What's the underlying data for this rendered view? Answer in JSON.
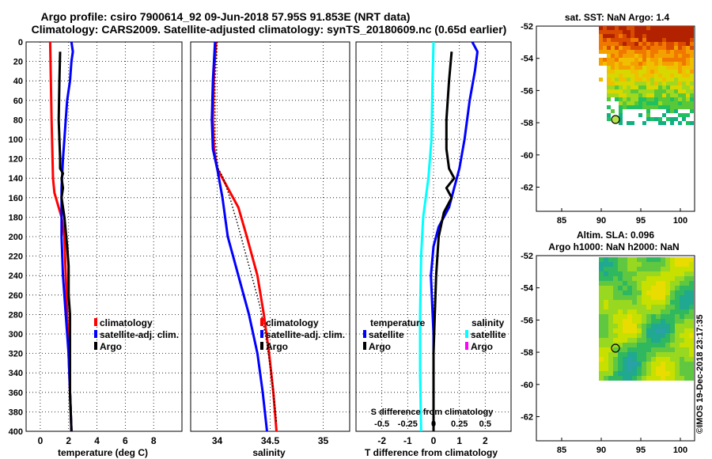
{
  "header": {
    "line1": "Argo profile: csiro 7900614_92 09-Jun-2018 57.95S 91.853E (NRT data)",
    "line2": "Climatology: CARS2009. Satellite-adjusted climatology: synTS_20180609.nc (0.65d earlier)"
  },
  "chart_data": [
    {
      "type": "line",
      "title": "",
      "xlabel": "temperature (deg C)",
      "xlim": [
        -1,
        10
      ],
      "ylim": [
        400,
        0
      ],
      "xticks": [
        0,
        2,
        4,
        6,
        8
      ],
      "xtick_labels": [
        "0",
        "2",
        "4",
        "6",
        "8"
      ],
      "yticks": [
        0,
        20,
        40,
        60,
        80,
        100,
        120,
        140,
        160,
        180,
        200,
        220,
        240,
        260,
        280,
        300,
        320,
        340,
        360,
        380,
        400
      ],
      "ytick_labels": [
        "0",
        "20",
        "40",
        "60",
        "80",
        "100",
        "120",
        "140",
        "160",
        "180",
        "200",
        "220",
        "240",
        "260",
        "280",
        "300",
        "320",
        "340",
        "360",
        "380",
        "400"
      ],
      "grid": true,
      "legend": [
        "climatology",
        "satellite-adj. clim.",
        "Argo"
      ],
      "series": [
        {
          "name": "climatology",
          "color": "#ff0000",
          "points": [
            [
              0.7,
              0
            ],
            [
              0.75,
              40
            ],
            [
              0.8,
              80
            ],
            [
              0.85,
              110
            ],
            [
              0.9,
              140
            ],
            [
              1.0,
              155
            ],
            [
              1.2,
              165
            ],
            [
              1.5,
              180
            ],
            [
              1.7,
              200
            ],
            [
              1.8,
              240
            ],
            [
              1.9,
              280
            ],
            [
              2.0,
              320
            ],
            [
              2.1,
              360
            ],
            [
              2.2,
              400
            ]
          ]
        },
        {
          "name": "satellite-adj. clim.",
          "color": "#0000ff",
          "points": [
            [
              2.2,
              0
            ],
            [
              2.3,
              10
            ],
            [
              2.2,
              20
            ],
            [
              2.1,
              40
            ],
            [
              1.9,
              60
            ],
            [
              1.8,
              80
            ],
            [
              1.7,
              100
            ],
            [
              1.6,
              120
            ],
            [
              1.5,
              150
            ],
            [
              1.5,
              200
            ],
            [
              1.6,
              240
            ],
            [
              1.8,
              280
            ],
            [
              2.0,
              320
            ],
            [
              2.1,
              360
            ],
            [
              2.2,
              400
            ]
          ]
        },
        {
          "name": "Argo",
          "color": "#000000",
          "points": [
            [
              1.4,
              10
            ],
            [
              1.35,
              40
            ],
            [
              1.3,
              80
            ],
            [
              1.4,
              120
            ],
            [
              1.4,
              130
            ],
            [
              1.6,
              135
            ],
            [
              1.5,
              140
            ],
            [
              1.6,
              150
            ],
            [
              1.5,
              160
            ],
            [
              1.7,
              180
            ],
            [
              1.9,
              210
            ],
            [
              2.0,
              230
            ],
            [
              2.0,
              260
            ],
            [
              2.1,
              280
            ],
            [
              2.1,
              320
            ],
            [
              2.1,
              360
            ],
            [
              2.2,
              400
            ]
          ]
        }
      ]
    },
    {
      "type": "line",
      "xlabel": "salinity",
      "xlim": [
        33.75,
        35.25
      ],
      "ylim": [
        400,
        0
      ],
      "xticks": [
        34,
        34.5,
        35
      ],
      "xtick_labels": [
        "34",
        "34.5",
        "35"
      ],
      "grid": true,
      "legend": [
        "climatology",
        "satellite-adj. clim.",
        "Argo"
      ],
      "series": [
        {
          "name": "climatology",
          "color": "#ff0000",
          "points": [
            [
              33.99,
              0
            ],
            [
              33.97,
              30
            ],
            [
              33.96,
              80
            ],
            [
              33.97,
              110
            ],
            [
              34.0,
              130
            ],
            [
              34.1,
              150
            ],
            [
              34.2,
              170
            ],
            [
              34.28,
              200
            ],
            [
              34.38,
              240
            ],
            [
              34.44,
              280
            ],
            [
              34.49,
              320
            ],
            [
              34.53,
              360
            ],
            [
              34.56,
              400
            ]
          ]
        },
        {
          "name": "satellite-adj. clim.",
          "color": "#0000ff",
          "points": [
            [
              33.98,
              0
            ],
            [
              33.96,
              40
            ],
            [
              33.95,
              80
            ],
            [
              33.96,
              110
            ],
            [
              34.0,
              130
            ],
            [
              34.05,
              160
            ],
            [
              34.1,
              200
            ],
            [
              34.2,
              240
            ],
            [
              34.3,
              280
            ],
            [
              34.38,
              320
            ],
            [
              34.43,
              360
            ],
            [
              34.47,
              400
            ]
          ]
        },
        {
          "name": "Argo",
          "color": "#000000",
          "dotted": true,
          "points": [
            [
              34.0,
              0
            ],
            [
              33.98,
              40
            ],
            [
              33.98,
              100
            ],
            [
              34.01,
              130
            ],
            [
              34.06,
              140
            ],
            [
              34.12,
              160
            ],
            [
              34.2,
              190
            ],
            [
              34.3,
              230
            ],
            [
              34.4,
              270
            ],
            [
              34.47,
              310
            ],
            [
              34.52,
              350
            ],
            [
              34.56,
              390
            ]
          ]
        }
      ]
    },
    {
      "type": "line",
      "xlabel": "T difference from climatology",
      "x2label": "S difference from climatology",
      "xlim": [
        -3,
        3
      ],
      "x2lim": [
        -0.75,
        0.75
      ],
      "ylim": [
        400,
        0
      ],
      "xticks": [
        -2,
        -1,
        0,
        1,
        2
      ],
      "xtick_labels": [
        "-2",
        "-1",
        "0",
        "1",
        "2"
      ],
      "x2ticks": [
        -0.5,
        -0.25,
        0,
        0.25,
        0.5
      ],
      "x2tick_labels": [
        "-0.5",
        "-0.25",
        "0",
        "0.25",
        "0.5"
      ],
      "grid": true,
      "legend_temperature_title": "temperature",
      "legend_salinity_title": "salinity",
      "legend_temperature": [
        "satellite",
        "Argo"
      ],
      "legend_salinity": [
        "satellite",
        "Argo"
      ],
      "series": [
        {
          "name": "T satellite",
          "color": "#0000ff",
          "points": [
            [
              1.5,
              0
            ],
            [
              1.7,
              10
            ],
            [
              1.6,
              30
            ],
            [
              1.4,
              60
            ],
            [
              1.2,
              100
            ],
            [
              1.0,
              130
            ],
            [
              0.8,
              150
            ],
            [
              0.6,
              170
            ],
            [
              0.2,
              190
            ],
            [
              0.0,
              210
            ],
            [
              -0.1,
              240
            ],
            [
              0.0,
              300
            ],
            [
              0.0,
              360
            ],
            [
              0.0,
              400
            ]
          ]
        },
        {
          "name": "T Argo",
          "color": "#000000",
          "points": [
            [
              0.7,
              10
            ],
            [
              0.6,
              40
            ],
            [
              0.5,
              80
            ],
            [
              0.5,
              110
            ],
            [
              0.6,
              130
            ],
            [
              0.8,
              140
            ],
            [
              0.5,
              150
            ],
            [
              0.7,
              160
            ],
            [
              0.4,
              175
            ],
            [
              0.2,
              200
            ],
            [
              0.1,
              240
            ],
            [
              0.05,
              280
            ],
            [
              0.0,
              320
            ],
            [
              0.0,
              360
            ],
            [
              0.0,
              400
            ]
          ]
        },
        {
          "name": "S satellite",
          "color": "#00ffff",
          "points": [
            [
              0.0,
              0
            ],
            [
              -0.01,
              40
            ],
            [
              -0.02,
              100
            ],
            [
              -0.05,
              140
            ],
            [
              -0.1,
              180
            ],
            [
              -0.12,
              220
            ],
            [
              -0.13,
              280
            ],
            [
              -0.13,
              340
            ],
            [
              -0.12,
              400
            ]
          ]
        }
      ]
    }
  ],
  "sst_map": {
    "title": "sat. SST: NaN Argo: 1.4",
    "lon_ticks": [
      "85",
      "90",
      "95",
      "100"
    ],
    "lat_ticks": [
      "-52",
      "-54",
      "-56",
      "-58",
      "-60",
      "-62"
    ],
    "marker_color": "#b7e34a"
  },
  "sla_map": {
    "title_line1": "Altim. SLA: 0.096",
    "title_line2": "Argo h1000: NaN h2000: NaN",
    "lon_ticks": [
      "85",
      "90",
      "95",
      "100"
    ],
    "lat_ticks": [
      "-52",
      "-54",
      "-56",
      "-58",
      "-60",
      "-62"
    ]
  },
  "footer": {
    "credit": "©IMOS 19-Dec-2018 23:17:35"
  }
}
